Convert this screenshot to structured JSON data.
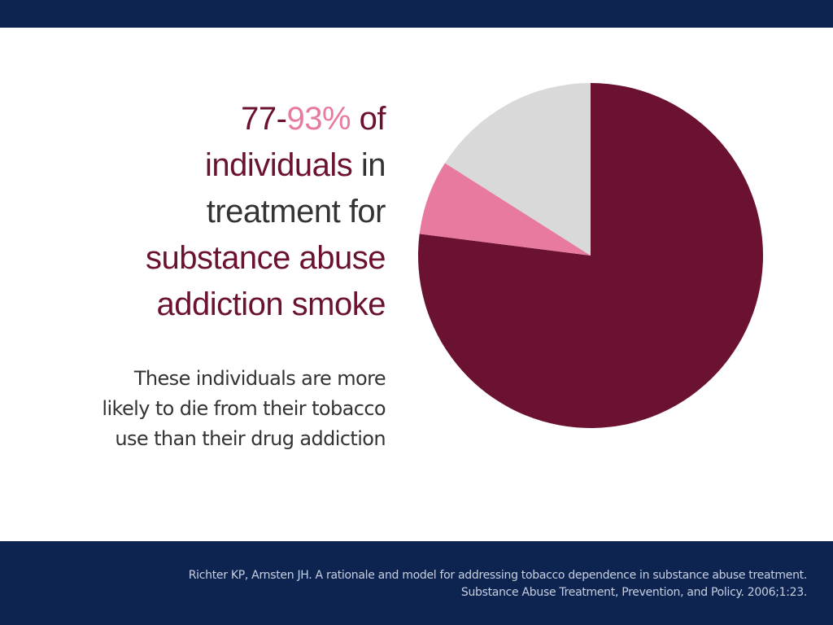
{
  "headline": {
    "part1": "77-",
    "part2": "93%",
    "part3": " of",
    "part4": "individuals",
    "part5": " in",
    "part6": "treatment for",
    "part7": "substance abuse",
    "part8": "addiction smoke"
  },
  "subtext": {
    "line1": "These individuals are more",
    "line2": "likely to die from their tobacco",
    "line3": "use than their drug addiction"
  },
  "citation": {
    "line1": "Richter KP, Arnsten JH. A rationale and model for addressing tobacco dependence in substance abuse treatment.",
    "line2": "Substance Abuse Treatment, Prevention, and Policy. 2006;1:23."
  },
  "colors": {
    "maroon": "#6b1131",
    "pink": "#e8799f",
    "gray": "#d9d9d9",
    "navy": "#0d2451"
  },
  "chart_data": {
    "type": "pie",
    "title": "",
    "legend": "none",
    "slices": [
      {
        "value": 77,
        "color": "#6b1131"
      },
      {
        "value": 7,
        "color": "#e8799f"
      },
      {
        "value": 16,
        "color": "#d9d9d9"
      }
    ]
  }
}
